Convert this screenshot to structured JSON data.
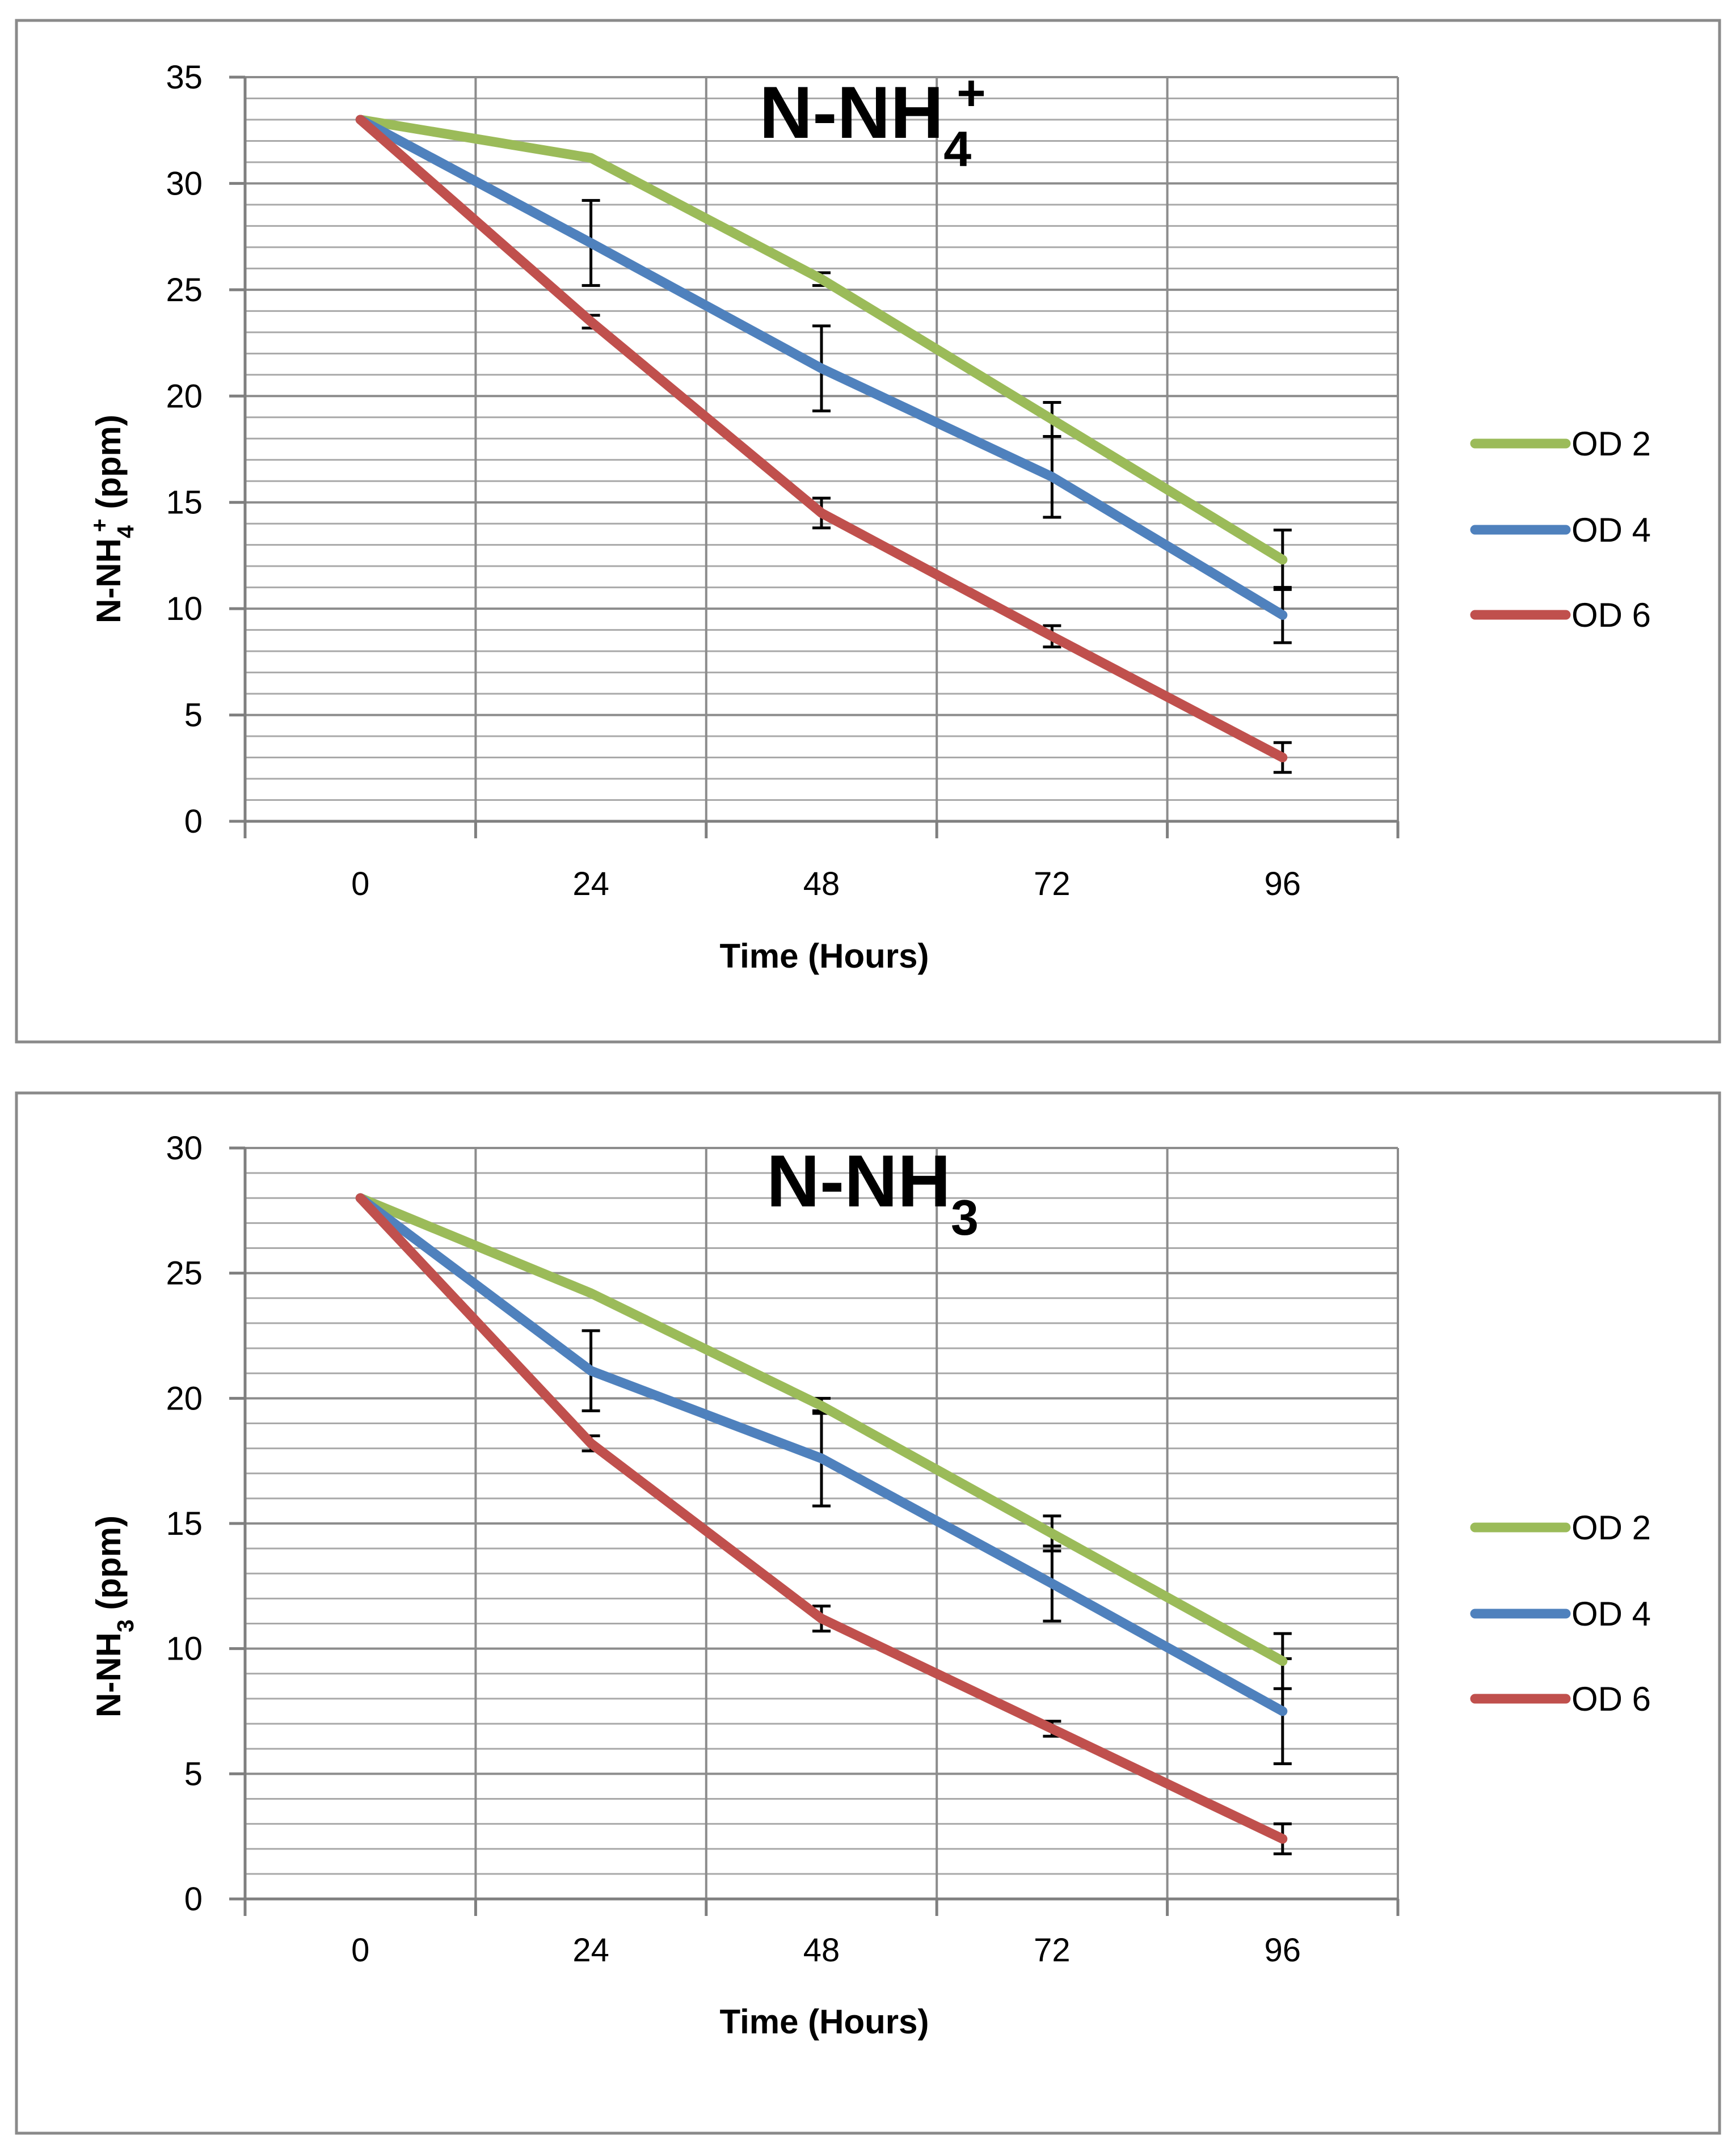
{
  "chart_data": [
    {
      "type": "line",
      "title": {
        "main": "N-NH",
        "sub": "4",
        "sup": "+"
      },
      "xlabel": "Time (Hours)",
      "ylabel": {
        "main": "N-NH",
        "sub": "4",
        "sup": "+",
        "rest": " (ppm)"
      },
      "categories": [
        "0",
        "24",
        "48",
        "72",
        "96"
      ],
      "ylim": [
        0,
        35
      ],
      "ymajor": 5,
      "yminor": 1,
      "grid": true,
      "legend_position": "right",
      "series": [
        {
          "name": "OD 2",
          "color": "#9BBB59",
          "values": [
            33,
            31.2,
            25.5,
            18.9,
            12.3
          ],
          "errors": [
            0,
            0,
            0.3,
            0.8,
            1.4
          ]
        },
        {
          "name": "OD 4",
          "color": "#4F81BD",
          "values": [
            33,
            27.2,
            21.3,
            16.2,
            9.7
          ],
          "errors": [
            0,
            2.0,
            2.0,
            1.9,
            1.3
          ]
        },
        {
          "name": "OD 6",
          "color": "#C0504D",
          "values": [
            33,
            23.5,
            14.5,
            8.7,
            3.0
          ],
          "errors": [
            0,
            0.3,
            0.7,
            0.5,
            0.7
          ]
        }
      ]
    },
    {
      "type": "line",
      "title": {
        "main": "N-NH",
        "sub": "3",
        "sup": ""
      },
      "xlabel": "Time (Hours)",
      "ylabel": {
        "main": "N-NH",
        "sub": "3",
        "sup": "",
        "rest": " (ppm)"
      },
      "categories": [
        "0",
        "24",
        "48",
        "72",
        "96"
      ],
      "ylim": [
        0,
        30
      ],
      "ymajor": 5,
      "yminor": 1,
      "grid": true,
      "legend_position": "right",
      "series": [
        {
          "name": "OD 2",
          "color": "#9BBB59",
          "values": [
            28,
            24.2,
            19.7,
            14.6,
            9.5
          ],
          "errors": [
            0,
            0,
            0.3,
            0.7,
            1.1
          ]
        },
        {
          "name": "OD 4",
          "color": "#4F81BD",
          "values": [
            28,
            21.1,
            17.6,
            12.6,
            7.5
          ],
          "errors": [
            0,
            1.6,
            1.9,
            1.5,
            2.1
          ]
        },
        {
          "name": "OD 6",
          "color": "#C0504D",
          "values": [
            28,
            18.2,
            11.2,
            6.8,
            2.4
          ],
          "errors": [
            0,
            0.3,
            0.5,
            0.3,
            0.6
          ]
        }
      ]
    }
  ]
}
